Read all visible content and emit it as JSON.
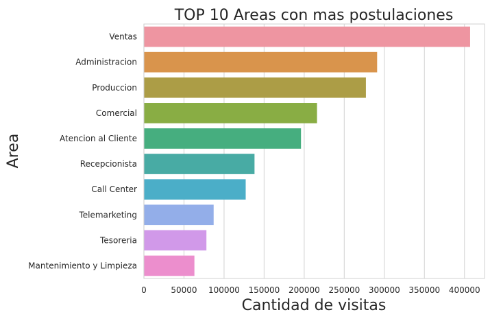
{
  "chart_data": {
    "type": "bar",
    "orientation": "horizontal",
    "title": "TOP 10 Areas con mas postulaciones",
    "xlabel": "Cantidad de visitas",
    "ylabel": "Area",
    "categories": [
      "Ventas",
      "Administracion",
      "Produccion",
      "Comercial",
      "Atencion al Cliente",
      "Recepcionista",
      "Call Center",
      "Telemarketing",
      "Tesoreria",
      "Mantenimiento y Limpieza"
    ],
    "values": [
      407000,
      291000,
      277000,
      216000,
      196000,
      138000,
      127000,
      87000,
      78000,
      63000
    ],
    "colors": [
      "#ee95a1",
      "#d9944c",
      "#ac9d46",
      "#89ad44",
      "#46ae7f",
      "#48aba4",
      "#4baec8",
      "#93aee9",
      "#d199e9",
      "#ec8ecd"
    ],
    "xlim": [
      0,
      425000
    ],
    "xticks": [
      0,
      50000,
      100000,
      150000,
      200000,
      250000,
      300000,
      350000,
      400000
    ],
    "grid": true,
    "legend": "none"
  }
}
